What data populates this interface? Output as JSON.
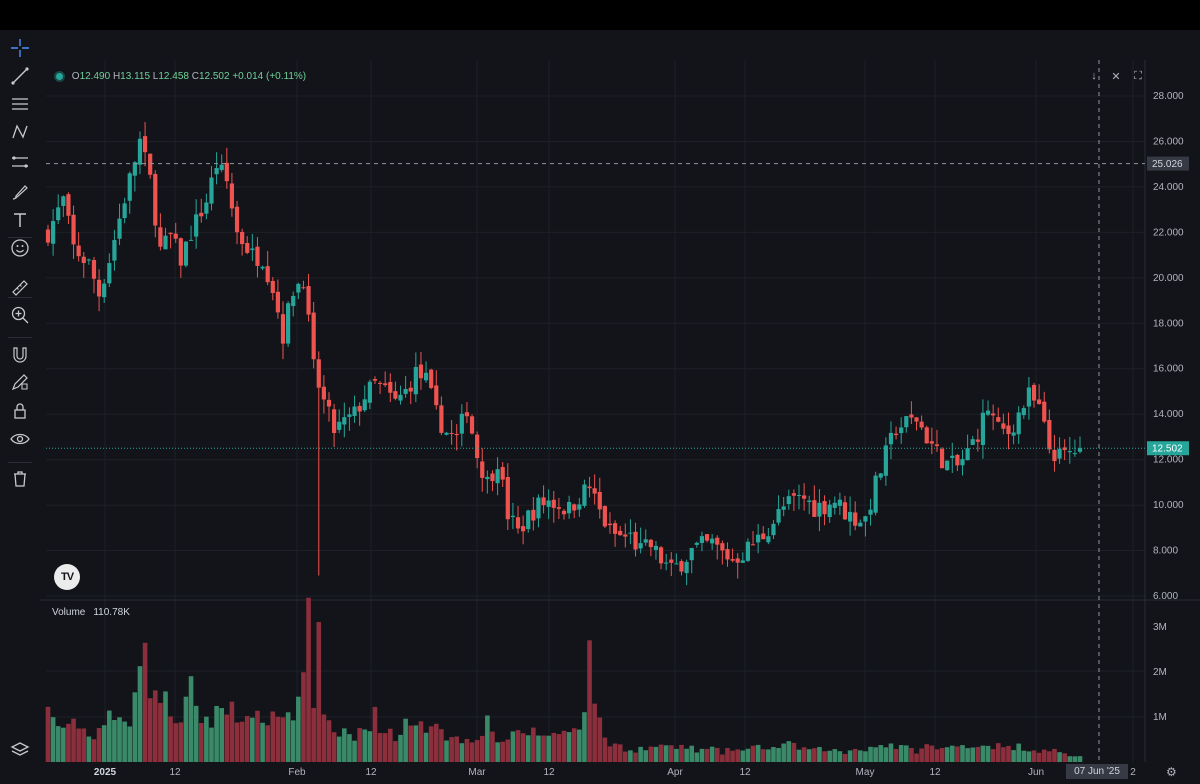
{
  "toolbar": {
    "tools": [
      {
        "name": "crosshair-icon",
        "y": 48,
        "active": true
      },
      {
        "name": "trend-line-icon",
        "y": 76
      },
      {
        "name": "horizontal-lines-icon",
        "y": 104
      },
      {
        "name": "pattern-icon",
        "y": 132
      },
      {
        "name": "channel-icon",
        "y": 162
      },
      {
        "name": "brush-icon",
        "y": 192
      },
      {
        "name": "text-icon",
        "y": 220
      },
      {
        "name": "emoji-icon",
        "y": 248
      },
      {
        "name": "ruler-icon",
        "y": 288
      },
      {
        "name": "zoom-in-icon",
        "y": 315
      },
      {
        "name": "magnet-icon",
        "y": 355
      },
      {
        "name": "lock-drawing-icon",
        "y": 382
      },
      {
        "name": "lock-icon",
        "y": 411
      },
      {
        "name": "eye-icon",
        "y": 439
      },
      {
        "name": "trash-icon",
        "y": 479
      },
      {
        "name": "layers-icon",
        "y": 750
      }
    ]
  },
  "legend": {
    "o_label": "O",
    "o": "12.490",
    "h_label": "H",
    "h": "13.115",
    "l_label": "L",
    "l": "12.458",
    "c_label": "C",
    "c": "12.502",
    "change": "+0.014 (+0.11%)"
  },
  "volume_legend": {
    "label": "Volume",
    "value": "110.78K"
  },
  "logo_text": "TV",
  "crosshair": {
    "price_label": "25.026",
    "date_label": "07 Jun '25"
  },
  "last_price_label": "12.502",
  "colors": {
    "up": "#26a69a",
    "down": "#ef5350",
    "up_vol": "#3a8a6a",
    "down_vol": "#8b2f3c",
    "grid": "#1e2029",
    "text": "#b2b5be"
  },
  "chart_data": {
    "type": "candlestick",
    "price_axis": {
      "ticks": [
        "28.000",
        "26.000",
        "24.000",
        "22.000",
        "20.000",
        "18.000",
        "16.000",
        "14.000",
        "12.000",
        "10.000",
        "8.000",
        "6.000"
      ],
      "min": 6,
      "max": 28
    },
    "volume_axis": {
      "ticks": [
        "3M",
        "2M",
        "1M"
      ]
    },
    "x_ticks": [
      "2025",
      "12",
      "Feb",
      "12",
      "Mar",
      "12",
      "Apr",
      "12",
      "May",
      "12",
      "Jun",
      "2"
    ],
    "anchors": [
      [
        0,
        22.0
      ],
      [
        3,
        23.4
      ],
      [
        5,
        21.3
      ],
      [
        8,
        20.6
      ],
      [
        10,
        19.3
      ],
      [
        12,
        20.8
      ],
      [
        15,
        23.5
      ],
      [
        18,
        26.0
      ],
      [
        20,
        24.3
      ],
      [
        22,
        21.2
      ],
      [
        24,
        21.8
      ],
      [
        26,
        20.8
      ],
      [
        28,
        22.0
      ],
      [
        31,
        23.4
      ],
      [
        33,
        25.0
      ],
      [
        35,
        24.2
      ],
      [
        37,
        22.0
      ],
      [
        40,
        21.0
      ],
      [
        42,
        20.9
      ],
      [
        44,
        19.6
      ],
      [
        46,
        17.5
      ],
      [
        48,
        19.5
      ],
      [
        50,
        20.0
      ],
      [
        52,
        16.0
      ],
      [
        54,
        14.5
      ],
      [
        56,
        13.3
      ],
      [
        58,
        13.6
      ],
      [
        60,
        14.0
      ],
      [
        62,
        14.8
      ],
      [
        64,
        15.3
      ],
      [
        66,
        15.0
      ],
      [
        68,
        14.5
      ],
      [
        70,
        15.0
      ],
      [
        72,
        15.8
      ],
      [
        74,
        15.5
      ],
      [
        76,
        14.0
      ],
      [
        78,
        13.2
      ],
      [
        80,
        12.9
      ],
      [
        82,
        14.3
      ],
      [
        84,
        12.2
      ],
      [
        86,
        11.0
      ],
      [
        88,
        12.0
      ],
      [
        90,
        9.6
      ],
      [
        92,
        8.8
      ],
      [
        94,
        9.5
      ],
      [
        96,
        10.0
      ],
      [
        98,
        10.2
      ],
      [
        100,
        10.0
      ],
      [
        102,
        9.8
      ],
      [
        104,
        10.4
      ],
      [
        106,
        10.8
      ],
      [
        108,
        9.7
      ],
      [
        110,
        8.8
      ],
      [
        112,
        8.6
      ],
      [
        114,
        8.6
      ],
      [
        116,
        8.0
      ],
      [
        118,
        8.2
      ],
      [
        120,
        7.6
      ],
      [
        122,
        7.1
      ],
      [
        124,
        7.5
      ],
      [
        126,
        8.0
      ],
      [
        128,
        8.2
      ],
      [
        130,
        8.3
      ],
      [
        132,
        7.9
      ],
      [
        134,
        7.6
      ],
      [
        136,
        7.9
      ],
      [
        138,
        8.3
      ],
      [
        140,
        8.7
      ],
      [
        142,
        9.3
      ],
      [
        144,
        9.9
      ],
      [
        146,
        10.2
      ],
      [
        148,
        10.3
      ],
      [
        150,
        9.9
      ],
      [
        152,
        10.0
      ],
      [
        154,
        10.2
      ],
      [
        156,
        9.7
      ],
      [
        158,
        9.4
      ],
      [
        160,
        9.4
      ],
      [
        162,
        10.9
      ],
      [
        164,
        12.2
      ],
      [
        166,
        13.4
      ],
      [
        168,
        13.6
      ],
      [
        170,
        13.8
      ],
      [
        172,
        13.0
      ],
      [
        174,
        12.3
      ],
      [
        176,
        11.8
      ],
      [
        178,
        11.7
      ],
      [
        180,
        12.3
      ],
      [
        182,
        13.2
      ],
      [
        184,
        14.3
      ],
      [
        186,
        13.3
      ],
      [
        188,
        13.2
      ],
      [
        190,
        14.0
      ],
      [
        192,
        14.8
      ],
      [
        194,
        14.2
      ],
      [
        196,
        12.5
      ],
      [
        198,
        12.1
      ],
      [
        200,
        12.3
      ],
      [
        202,
        12.5
      ]
    ],
    "volume_anchors": [
      [
        0,
        1.1
      ],
      [
        2,
        0.85
      ],
      [
        4,
        0.7
      ],
      [
        6,
        0.9
      ],
      [
        8,
        0.55
      ],
      [
        10,
        0.75
      ],
      [
        12,
        0.95
      ],
      [
        14,
        0.9
      ],
      [
        16,
        1.0
      ],
      [
        18,
        2.6
      ],
      [
        20,
        1.8
      ],
      [
        22,
        1.4
      ],
      [
        24,
        1.2
      ],
      [
        26,
        0.8
      ],
      [
        28,
        1.6
      ],
      [
        30,
        1.0
      ],
      [
        32,
        0.9
      ],
      [
        34,
        1.2
      ],
      [
        36,
        1.3
      ],
      [
        38,
        1.0
      ],
      [
        40,
        0.8
      ],
      [
        42,
        1.1
      ],
      [
        44,
        0.9
      ],
      [
        46,
        1.2
      ],
      [
        48,
        0.9
      ],
      [
        50,
        2.3
      ],
      [
        51,
        3.1
      ],
      [
        52,
        1.3
      ],
      [
        53,
        2.8
      ],
      [
        54,
        0.9
      ],
      [
        56,
        0.6
      ],
      [
        58,
        0.7
      ],
      [
        60,
        0.5
      ],
      [
        62,
        0.8
      ],
      [
        64,
        1.0
      ],
      [
        66,
        0.7
      ],
      [
        68,
        0.6
      ],
      [
        70,
        0.8
      ],
      [
        72,
        0.7
      ],
      [
        74,
        0.8
      ],
      [
        76,
        1.0
      ],
      [
        78,
        0.6
      ],
      [
        80,
        0.5
      ],
      [
        82,
        0.5
      ],
      [
        84,
        0.6
      ],
      [
        86,
        0.9
      ],
      [
        88,
        0.5
      ],
      [
        90,
        0.5
      ],
      [
        92,
        0.6
      ],
      [
        94,
        0.7
      ],
      [
        96,
        0.6
      ],
      [
        98,
        0.65
      ],
      [
        100,
        0.6
      ],
      [
        102,
        0.7
      ],
      [
        104,
        0.9
      ],
      [
        105,
        1.3
      ],
      [
        106,
        2.4
      ],
      [
        108,
        0.8
      ],
      [
        110,
        0.4
      ],
      [
        112,
        0.35
      ],
      [
        114,
        0.25
      ],
      [
        116,
        0.3
      ],
      [
        118,
        0.3
      ],
      [
        120,
        0.4
      ],
      [
        122,
        0.3
      ],
      [
        124,
        0.35
      ],
      [
        126,
        0.3
      ],
      [
        128,
        0.25
      ],
      [
        130,
        0.3
      ],
      [
        132,
        0.2
      ],
      [
        134,
        0.3
      ],
      [
        136,
        0.25
      ],
      [
        138,
        0.3
      ],
      [
        140,
        0.35
      ],
      [
        142,
        0.3
      ],
      [
        144,
        0.4
      ],
      [
        146,
        0.35
      ],
      [
        148,
        0.3
      ],
      [
        150,
        0.25
      ],
      [
        152,
        0.3
      ],
      [
        154,
        0.25
      ],
      [
        156,
        0.2
      ],
      [
        158,
        0.3
      ],
      [
        160,
        0.3
      ],
      [
        162,
        0.35
      ],
      [
        164,
        0.4
      ],
      [
        166,
        0.35
      ],
      [
        168,
        0.3
      ],
      [
        170,
        0.25
      ],
      [
        172,
        0.35
      ],
      [
        174,
        0.3
      ],
      [
        176,
        0.3
      ],
      [
        178,
        0.35
      ],
      [
        180,
        0.4
      ],
      [
        182,
        0.35
      ],
      [
        184,
        0.4
      ],
      [
        186,
        0.35
      ],
      [
        188,
        0.3
      ],
      [
        190,
        0.35
      ],
      [
        192,
        0.3
      ],
      [
        194,
        0.25
      ],
      [
        196,
        0.3
      ],
      [
        198,
        0.2
      ],
      [
        200,
        0.15
      ],
      [
        202,
        0.12
      ]
    ],
    "special_wicks": [
      {
        "i": 53,
        "low": 6.9
      }
    ],
    "crosshair_price": 25.026,
    "last_price": 12.502
  }
}
